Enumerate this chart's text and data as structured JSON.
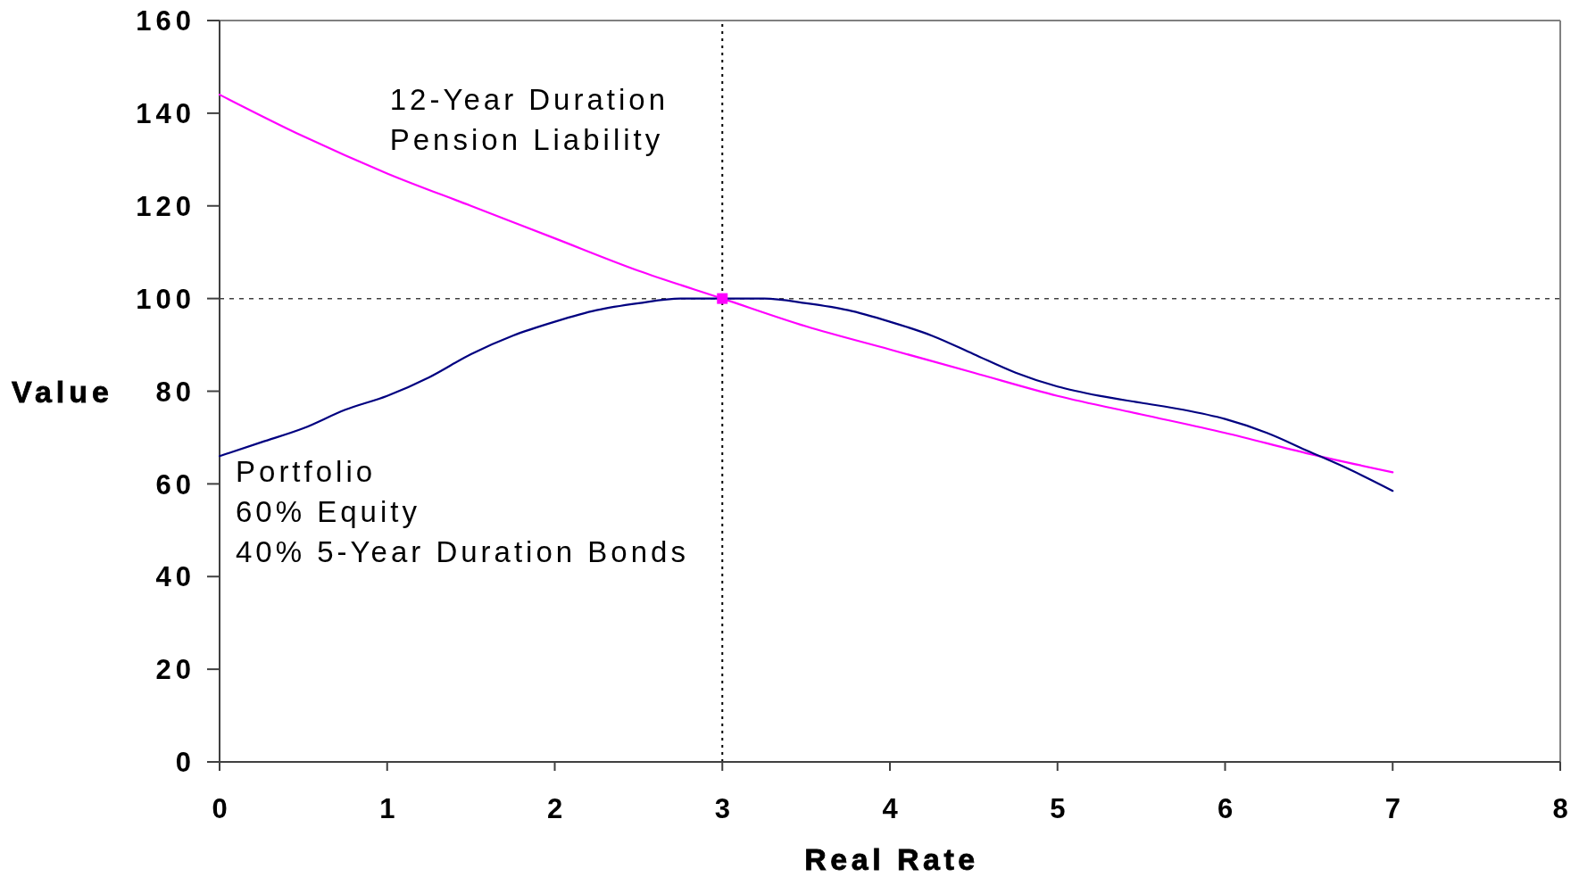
{
  "chart_data": {
    "type": "line",
    "xlabel": "Real Rate",
    "ylabel": "Value",
    "xlim": [
      0,
      8
    ],
    "ylim": [
      0,
      160
    ],
    "xticks": [
      0,
      1,
      2,
      3,
      4,
      5,
      6,
      7,
      8
    ],
    "yticks": [
      0,
      20,
      40,
      60,
      80,
      100,
      120,
      140,
      160
    ],
    "series": [
      {
        "name": "12-Year Duration\nPension Liability",
        "color": "#ff00ff",
        "x": [
          0,
          0.5,
          1,
          1.5,
          2,
          2.5,
          3,
          3.5,
          4,
          4.5,
          5,
          5.5,
          6,
          6.5,
          7
        ],
        "values": [
          144,
          135,
          127,
          120,
          113,
          106,
          100,
          94,
          89,
          84,
          79,
          75,
          71,
          66.5,
          62.5
        ]
      },
      {
        "name": "Portfolio\n60% Equity\n40% 5-Year Duration Bonds",
        "color": "#000080",
        "x": [
          0,
          0.25,
          0.5,
          0.75,
          1,
          1.25,
          1.5,
          1.75,
          2,
          2.25,
          2.5,
          2.75,
          3,
          3.25,
          3.5,
          3.75,
          4,
          4.25,
          4.5,
          4.75,
          5,
          5.25,
          5.5,
          5.75,
          6,
          6.25,
          6.5,
          6.75,
          7
        ],
        "values": [
          66,
          69,
          72,
          76,
          79,
          83,
          88,
          92,
          95,
          97.5,
          99,
          100,
          100,
          100,
          99,
          97.5,
          95,
          92,
          88,
          84,
          81,
          79,
          77.5,
          76,
          74,
          71,
          67,
          63,
          58.5
        ]
      },
      {
        "type": "scatter",
        "marker": "square",
        "color": "#ff00ff",
        "x": [
          3
        ],
        "values": [
          100
        ]
      }
    ],
    "ref_lines": [
      {
        "axis": "x",
        "value": 3,
        "color": "#000000",
        "line_style": "dotted"
      },
      {
        "axis": "y",
        "value": 100,
        "color": "#404040",
        "line_style": "dashed"
      }
    ]
  }
}
